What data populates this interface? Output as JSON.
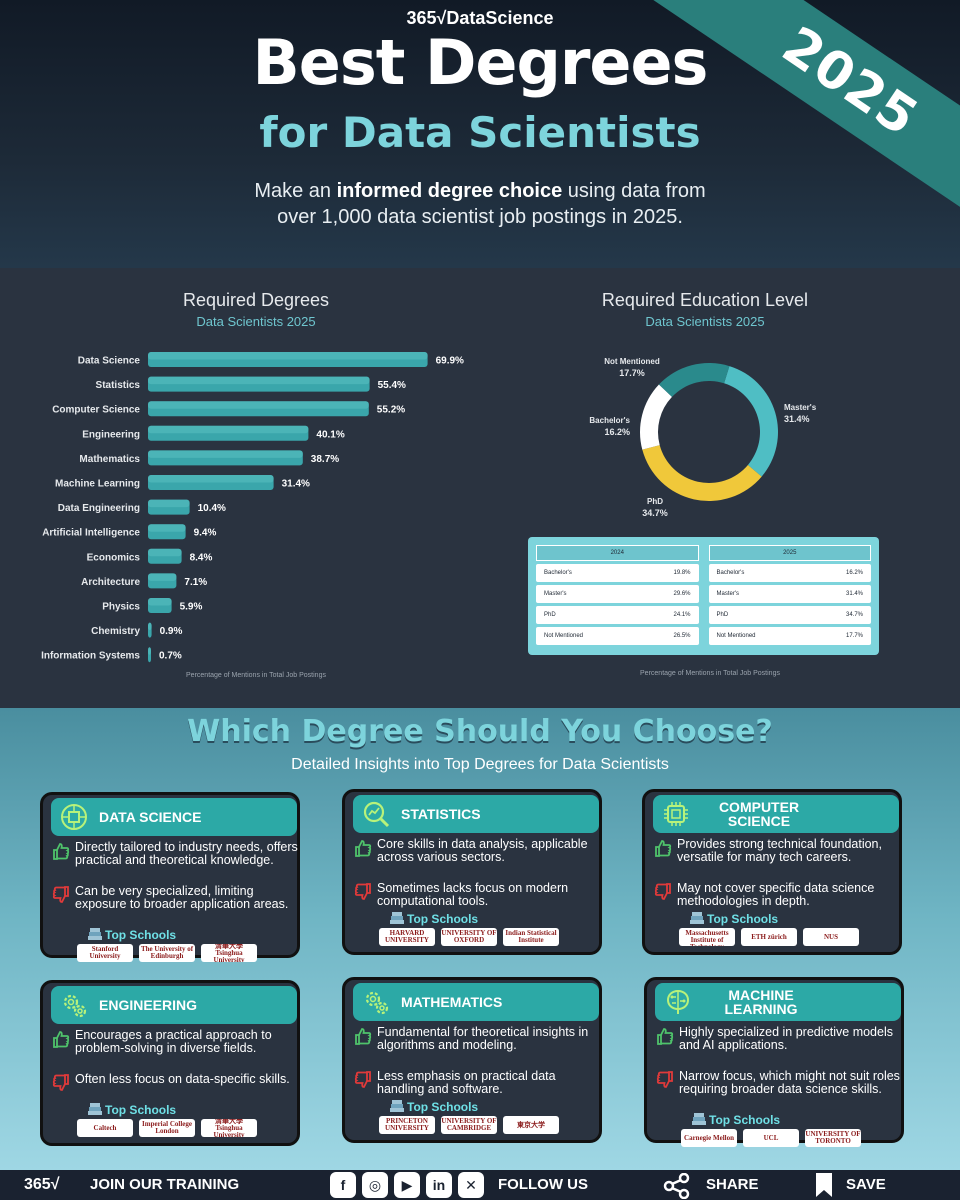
{
  "header": {
    "brand": "365√DataScience",
    "year_badge": "2025",
    "title_line1": "Best Degrees",
    "title_line2": "for Data Scientists",
    "intro_prefix": "Make an ",
    "intro_bold": "informed degree choice",
    "intro_suffix": " using data from",
    "intro_line2": "over 1,000 data scientist job postings in 2025."
  },
  "colors": {
    "accent_teal": "#3aa6ab",
    "accent_light": "#7dd4dc",
    "phd_yellow": "#f0c83a",
    "white": "#ffffff",
    "dark": "#2a3340"
  },
  "chart_data": [
    {
      "type": "bar",
      "orientation": "horizontal",
      "title": "Required Degrees",
      "subtitle": "Data Scientists 2025",
      "xlabel": "Percentage of Mentions in Total Job Postings",
      "categories": [
        "Data Science",
        "Statistics",
        "Computer Science",
        "Engineering",
        "Mathematics",
        "Machine Learning",
        "Data Engineering",
        "Artificial Intelligence",
        "Economics",
        "Architecture",
        "Physics",
        "Chemistry",
        "Information Systems"
      ],
      "values": [
        69.9,
        55.4,
        55.2,
        40.1,
        38.7,
        31.4,
        10.4,
        9.4,
        8.4,
        7.1,
        5.9,
        0.9,
        0.7
      ],
      "value_labels": [
        "69.9%",
        "55.4%",
        "55.2%",
        "40.1%",
        "38.7%",
        "31.4%",
        "10.4%",
        "9.4%",
        "8.4%",
        "7.1%",
        "5.9%",
        "0.9%",
        "0.7%"
      ],
      "xlim": [
        0,
        70
      ]
    },
    {
      "type": "pie",
      "style": "donut",
      "title": "Required Education Level",
      "subtitle": "Data Scientists 2025",
      "xlabel": "Percentage of Mentions in Total Job Postings",
      "slices": [
        {
          "label": "Master's",
          "value": 31.4,
          "text": "31.4%",
          "color": "#4fbec4"
        },
        {
          "label": "PhD",
          "value": 34.7,
          "text": "34.7%",
          "color": "#f0c83a"
        },
        {
          "label": "Bachelor's",
          "value": 16.2,
          "text": "16.2%",
          "color": "#ffffff"
        },
        {
          "label": "Not Mentioned",
          "value": 17.7,
          "text": "17.7%",
          "color": "#2a8a8c"
        }
      ]
    },
    {
      "type": "table",
      "tables": [
        {
          "header": "2024",
          "rows": [
            [
              "Bachelor's",
              "19.8%"
            ],
            [
              "Master's",
              "29.6%"
            ],
            [
              "PhD",
              "24.1%"
            ],
            [
              "Not Mentioned",
              "26.5%"
            ]
          ]
        },
        {
          "header": "2025",
          "rows": [
            [
              "Bachelor's",
              "16.2%"
            ],
            [
              "Master's",
              "31.4%"
            ],
            [
              "PhD",
              "34.7%"
            ],
            [
              "Not Mentioned",
              "17.7%"
            ]
          ]
        }
      ]
    }
  ],
  "degrees_section": {
    "title": "Which Degree Should You Choose?",
    "subtitle": "Detailed Insights into Top Degrees for Data Scientists",
    "schools_label": "Top Schools",
    "cards": [
      {
        "name": "Data Science",
        "icon": "brain-chip-icon",
        "pro": "Directly tailored to industry needs, offers practical and theoretical knowledge.",
        "con": "Can be very specialized, limiting exposure to broader application areas.",
        "schools": [
          "Stanford University",
          "The University of Edinburgh",
          "清華大學 Tsinghua University"
        ]
      },
      {
        "name": "Statistics",
        "icon": "magnifier-chart-icon",
        "pro": "Core skills in data analysis, applicable across various sectors.",
        "con": "Sometimes lacks focus on modern computational tools.",
        "schools": [
          "HARVARD UNIVERSITY",
          "UNIVERSITY OF OXFORD",
          "Indian Statistical Institute"
        ]
      },
      {
        "name": "Computer Science",
        "icon": "chip-icon",
        "pro": "Provides strong technical foundation, versatile for many tech careers.",
        "con": "May not cover specific data science methodologies in depth.",
        "schools": [
          "MIT Massachusetts Institute of Technology",
          "ETH zürich",
          "NUS"
        ]
      },
      {
        "name": "Engineering",
        "icon": "gears-icon",
        "pro": "Encourages a practical approach to problem-solving in diverse fields.",
        "con": "Often less focus on data-specific skills.",
        "schools": [
          "Caltech",
          "Imperial College London",
          "清華大學 Tsinghua University"
        ]
      },
      {
        "name": "Mathematics",
        "icon": "gears-icon",
        "pro": "Fundamental for theoretical insights in algorithms and modeling.",
        "con": "Less emphasis on practical data handling and software.",
        "schools": [
          "PRINCETON UNIVERSITY",
          "UNIVERSITY OF CAMBRIDGE",
          "東京大学"
        ]
      },
      {
        "name": "Machine Learning",
        "icon": "brain-circuit-icon",
        "pro": "Highly specialized in predictive models and AI applications.",
        "con": "Narrow focus, which might not suit roles requiring broader data science skills.",
        "schools": [
          "Carnegie Mellon",
          "UCL",
          "UNIVERSITY OF TORONTO"
        ]
      }
    ]
  },
  "footer": {
    "brand": "365√",
    "cta": "JOIN OUR TRAINING",
    "follow": "FOLLOW US",
    "share": "SHARE",
    "save": "SAVE",
    "social": [
      "facebook-icon",
      "instagram-icon",
      "youtube-icon",
      "linkedin-icon",
      "x-icon"
    ],
    "social_glyphs": [
      "f",
      "◎",
      "▶",
      "in",
      "✕"
    ]
  }
}
